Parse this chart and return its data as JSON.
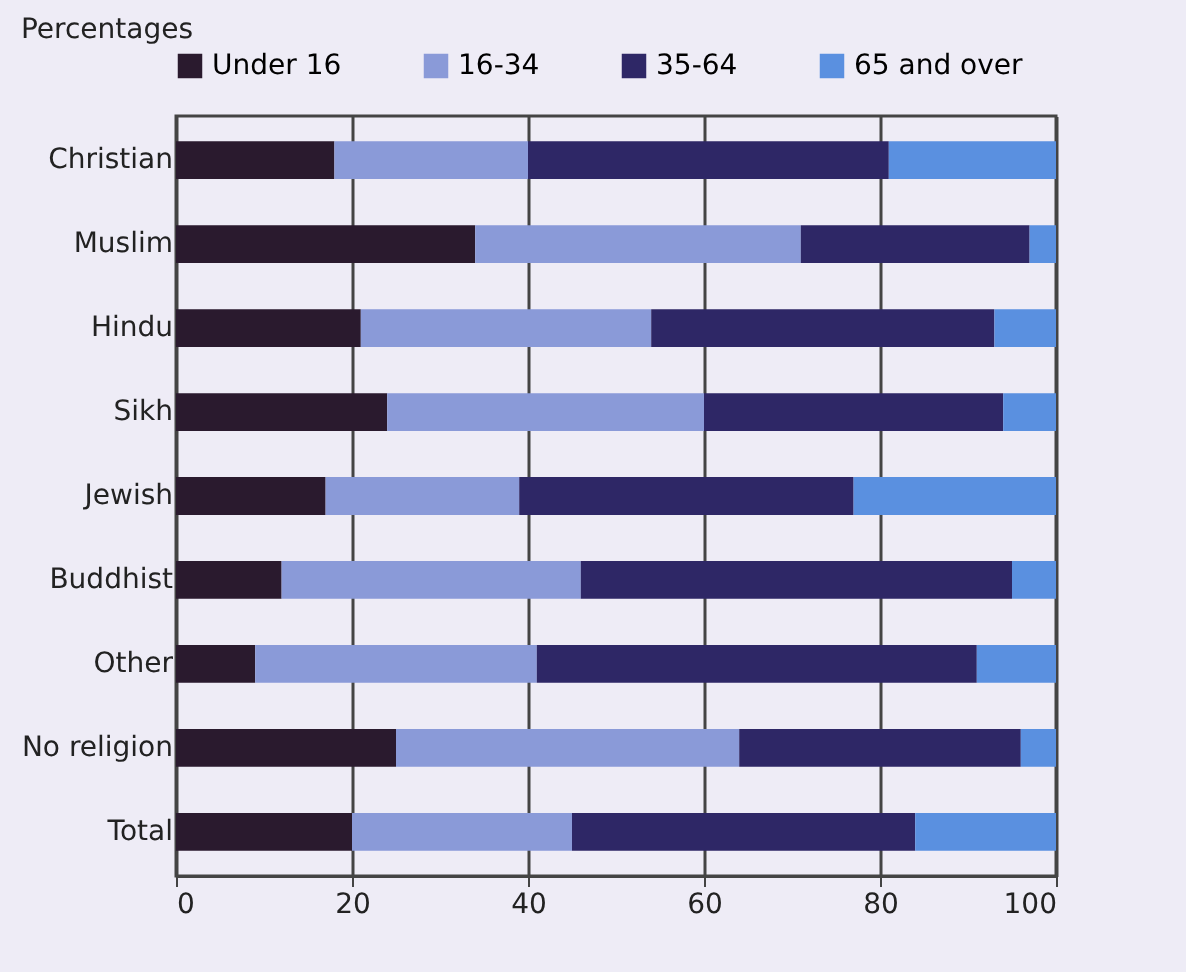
{
  "chart_data": {
    "type": "bar",
    "orientation": "horizontal",
    "stacked": true,
    "xlabel": "Percentages",
    "categories": [
      "Christian",
      "Muslim",
      "Hindu",
      "Sikh",
      "Jewish",
      "Buddhist",
      "Other",
      "No religion",
      "Total"
    ],
    "series": [
      {
        "name": "Under 16",
        "color": "#2a1a2e",
        "values": [
          18,
          34,
          21,
          24,
          17,
          12,
          9,
          25,
          20
        ]
      },
      {
        "name": "16-34",
        "color": "#8a9ad8",
        "values": [
          22,
          37,
          33,
          36,
          22,
          34,
          32,
          39,
          25
        ]
      },
      {
        "name": "35-64",
        "color": "#2e2766",
        "values": [
          41,
          26,
          39,
          34,
          38,
          49,
          50,
          32,
          39
        ]
      },
      {
        "name": "65 and over",
        "color": "#5a90e0",
        "values": [
          19,
          3,
          7,
          6,
          23,
          5,
          9,
          4,
          16
        ]
      }
    ],
    "xlim": [
      0,
      100
    ],
    "xticks": [
      0,
      20,
      40,
      60,
      80,
      100
    ],
    "grid": "x",
    "legend": "top"
  }
}
